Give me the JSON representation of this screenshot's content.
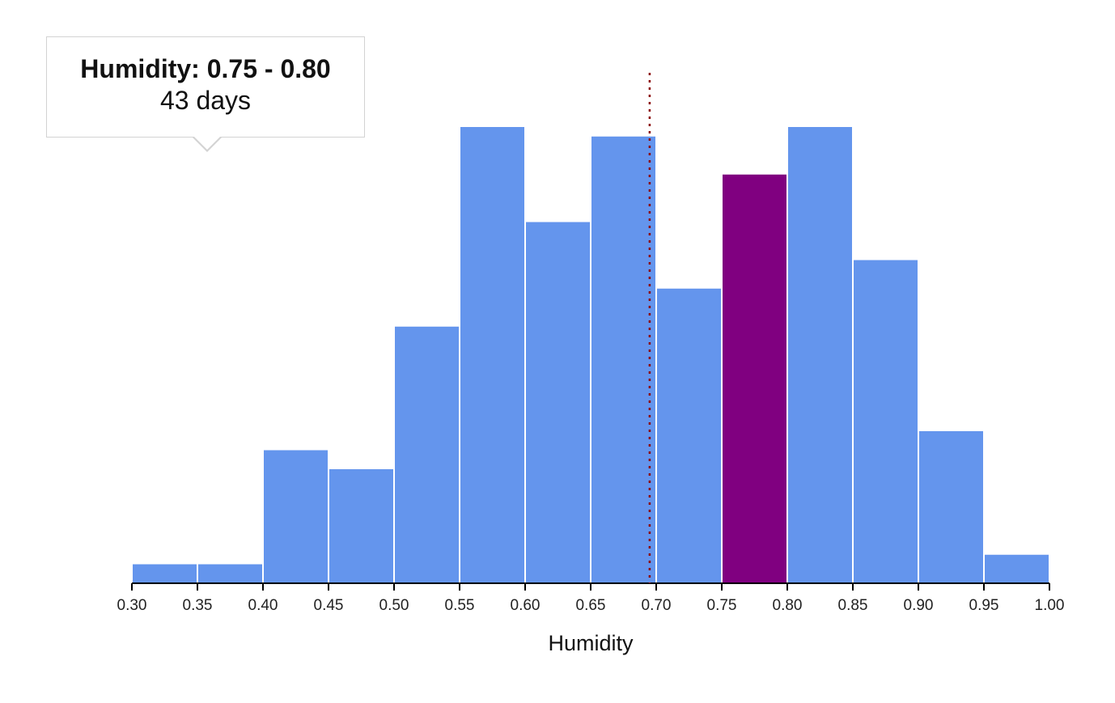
{
  "chart_data": {
    "type": "bar",
    "xlabel": "Humidity",
    "ylabel": "",
    "title": "",
    "bins": [
      [
        0.3,
        0.35
      ],
      [
        0.35,
        0.4
      ],
      [
        0.4,
        0.45
      ],
      [
        0.45,
        0.5
      ],
      [
        0.5,
        0.55
      ],
      [
        0.55,
        0.6
      ],
      [
        0.6,
        0.65
      ],
      [
        0.65,
        0.7
      ],
      [
        0.7,
        0.75
      ],
      [
        0.75,
        0.8
      ],
      [
        0.8,
        0.85
      ],
      [
        0.85,
        0.9
      ],
      [
        0.9,
        0.95
      ],
      [
        0.95,
        1.0
      ]
    ],
    "values": [
      2,
      2,
      14,
      12,
      27,
      48,
      38,
      47,
      31,
      43,
      48,
      34,
      16,
      3
    ],
    "xlim": [
      0.3,
      1.0
    ],
    "ylim": [
      0,
      48
    ],
    "x_ticks": [
      "0.30",
      "0.35",
      "0.40",
      "0.45",
      "0.50",
      "0.55",
      "0.60",
      "0.65",
      "0.70",
      "0.75",
      "0.80",
      "0.85",
      "0.90",
      "0.95",
      "1.00"
    ],
    "highlighted_bin": 9,
    "reference_line": {
      "x": 0.695
    },
    "grid": false,
    "colors": {
      "bar": "#6495ed",
      "highlight": "#800080",
      "reference_line": "#8b0000",
      "axis": "#000000"
    }
  },
  "tooltip": {
    "title": "Humidity: 0.75 - 0.80",
    "value": "43 days"
  }
}
